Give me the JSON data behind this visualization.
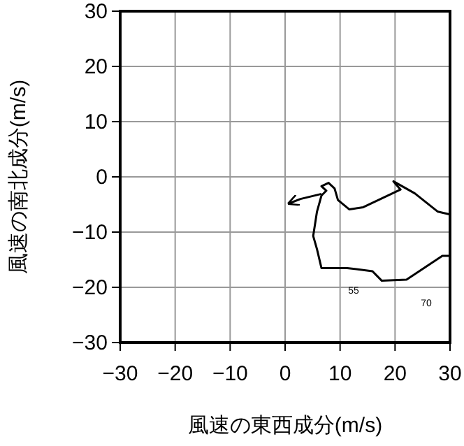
{
  "chart_data": {
    "type": "line",
    "xlabel": "風速の東西成分(m/s)",
    "ylabel": "風速の南北成分(m/s)",
    "xlim": [
      -30,
      30
    ],
    "ylim": [
      -30,
      30
    ],
    "xticks": [
      -30,
      -20,
      -10,
      0,
      10,
      20,
      30
    ],
    "yticks": [
      -30,
      -20,
      -10,
      0,
      10,
      20,
      30
    ],
    "grid": true,
    "series": [
      {
        "color": "#000000",
        "x": [
          30.0,
          27.8,
          23.6,
          19.7,
          21.0,
          14.2,
          11.7,
          9.6,
          9.0,
          7.9,
          6.6,
          7.5,
          6.6,
          5.8,
          5.1,
          5.8,
          6.6,
          11.3,
          15.9,
          17.6,
          22.1,
          28.6,
          30.0
        ],
        "values": [
          -6.8,
          -6.3,
          -3.0,
          -0.8,
          -2.3,
          -5.5,
          -5.9,
          -4.2,
          -2.1,
          -1.1,
          -1.7,
          -2.5,
          -3.4,
          -6.3,
          -10.7,
          -13.1,
          -16.5,
          -16.5,
          -17.1,
          -18.8,
          -18.6,
          -14.3,
          -14.3
        ]
      },
      {
        "color": "#000000",
        "x": [
          6.6,
          2.8,
          0.7
        ],
        "values": [
          -3.1,
          -4.0,
          -4.8
        ]
      }
    ],
    "annotations": [
      "55",
      "70"
    ]
  }
}
